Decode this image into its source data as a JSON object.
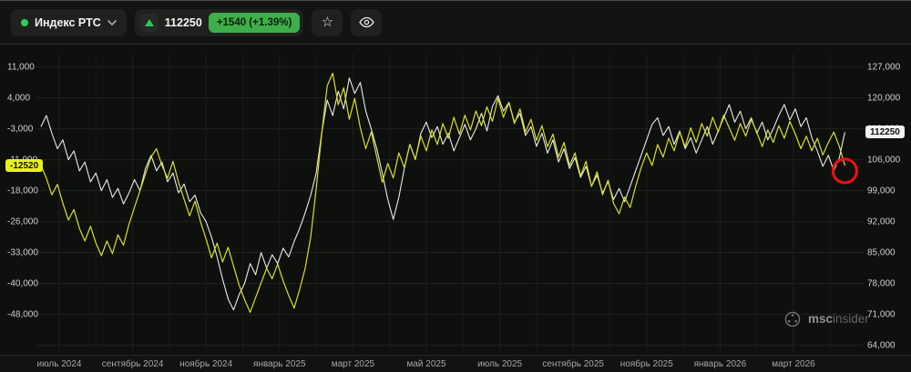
{
  "toolbar": {
    "instrument": {
      "label": "Индекс РТС",
      "status_color": "#2ecc5b"
    },
    "price": {
      "value": "112250",
      "change": "+1540 (+1.39%)",
      "direction": "up",
      "up_color": "#35c356",
      "change_bg": "#3fae4a"
    }
  },
  "watermark": {
    "brand_primary": "msc",
    "brand_secondary": "insider"
  },
  "chart_data": {
    "type": "line",
    "title": "Индекс РТС",
    "grid": true,
    "legend": false,
    "x_ticks": [
      {
        "m": 0,
        "label": "июль 2024"
      },
      {
        "m": 2,
        "label": "сентябрь 2024"
      },
      {
        "m": 4,
        "label": "ноябрь 2024"
      },
      {
        "m": 6,
        "label": "январь 2025"
      },
      {
        "m": 8,
        "label": "март 2025"
      },
      {
        "m": 10,
        "label": "май 2025"
      },
      {
        "m": 12,
        "label": "июль 2025"
      },
      {
        "m": 14,
        "label": "сентябрь 2025"
      },
      {
        "m": 16,
        "label": "ноябрь 2025"
      },
      {
        "m": 18,
        "label": "январь 2026"
      },
      {
        "m": 20,
        "label": "март 2026"
      }
    ],
    "axes": {
      "right": {
        "min": 62500,
        "max": 130000,
        "tick_values": [
          127000,
          120000,
          113000,
          106000,
          99000,
          92000,
          85000,
          78000,
          71000,
          64000
        ],
        "tick_labels": [
          "127,000",
          "120,000",
          "113,000",
          "106,000",
          "99,000",
          "92,000",
          "85,000",
          "78,000",
          "71,000",
          "64,000"
        ],
        "current": {
          "value": 112250,
          "label": "112250",
          "bg": "#f1f3f1",
          "fg": "#141414"
        }
      },
      "left": {
        "min": -56957,
        "max": 14161,
        "tick_labels": [
          "11,000",
          "4,000",
          "-3,000",
          "-11,000",
          "-18,000",
          "-26,000",
          "-33,000",
          "-40,000",
          "-48,000"
        ],
        "current": {
          "value": -12520,
          "label": "-12520",
          "bg": "#e8ef1f",
          "fg": "#141414"
        }
      }
    },
    "series": [
      {
        "name": "white-line",
        "color": "#e9ebe9",
        "axis": "right",
        "width": 1.1,
        "x_start": -0.5,
        "x_step": 0.15,
        "values": [
          113500,
          116000,
          112000,
          108500,
          110500,
          106000,
          108000,
          103500,
          105500,
          101000,
          103000,
          99000,
          101500,
          97500,
          99500,
          96000,
          98500,
          101500,
          99000,
          104000,
          107000,
          103500,
          105500,
          101000,
          103000,
          98500,
          100500,
          96500,
          98000,
          94000,
          92000,
          88500,
          84000,
          79000,
          74500,
          72000,
          75500,
          78000,
          82500,
          80000,
          85000,
          81500,
          84500,
          82500,
          86000,
          84000,
          87500,
          90500,
          94000,
          98000,
          103000,
          112000,
          119500,
          116000,
          121500,
          117500,
          124500,
          121000,
          123500,
          117000,
          113000,
          108500,
          103000,
          97000,
          92500,
          97500,
          104000,
          109500,
          106000,
          112000,
          114500,
          111000,
          113500,
          109500,
          112000,
          108000,
          111000,
          114000,
          110500,
          113000,
          116500,
          112500,
          118000,
          120500,
          117000,
          119000,
          114500,
          116500,
          111500,
          113500,
          109000,
          112000,
          107500,
          110500,
          105500,
          108500,
          104000,
          106500,
          102000,
          104500,
          100000,
          102500,
          98500,
          101000,
          97000,
          99500,
          96500,
          100000,
          103500,
          107000,
          110500,
          114000,
          115500,
          111500,
          113500,
          109500,
          112500,
          108500,
          111000,
          107500,
          110500,
          113500,
          109500,
          112500,
          115500,
          118500,
          114500,
          117000,
          113000,
          115500,
          112000,
          114500,
          110500,
          113000,
          116000,
          118500,
          115000,
          117500,
          113500,
          115500,
          111000,
          108000,
          104500,
          107000,
          103500,
          106500,
          112250
        ]
      },
      {
        "name": "yellow-line",
        "color": "#d9e021",
        "axis": "left",
        "width": 1.2,
        "x_start": -0.5,
        "x_step": 0.15,
        "values": [
          -12500,
          -15500,
          -19500,
          -17000,
          -21500,
          -25500,
          -23000,
          -27500,
          -30500,
          -27000,
          -31000,
          -34000,
          -30500,
          -33500,
          -29000,
          -31500,
          -26500,
          -22500,
          -18500,
          -14500,
          -10500,
          -8500,
          -12500,
          -15500,
          -11500,
          -16500,
          -20500,
          -24500,
          -21000,
          -26000,
          -30000,
          -34500,
          -31000,
          -35500,
          -32000,
          -36500,
          -41000,
          -44500,
          -47500,
          -44000,
          -40500,
          -37000,
          -39500,
          -36000,
          -40000,
          -43500,
          -46500,
          -42000,
          -37000,
          -29500,
          -18000,
          -5000,
          6500,
          9500,
          2000,
          6000,
          -1500,
          3500,
          -3500,
          -8500,
          -4500,
          -10500,
          -16500,
          -12000,
          -15500,
          -9500,
          -13000,
          -7500,
          -11000,
          -5500,
          -9000,
          -4000,
          -7500,
          -2500,
          -6000,
          -1000,
          -5000,
          -500,
          -4000,
          500,
          -3000,
          1500,
          -2000,
          3500,
          -1000,
          2500,
          -2500,
          1000,
          -4500,
          -1500,
          -6500,
          -3000,
          -8000,
          -5000,
          -10500,
          -7000,
          -12500,
          -9500,
          -15000,
          -11500,
          -17500,
          -14000,
          -19500,
          -16000,
          -21500,
          -24000,
          -20000,
          -22500,
          -17500,
          -13000,
          -9500,
          -12500,
          -7500,
          -10500,
          -6000,
          -9000,
          -4500,
          -8000,
          -3500,
          -7000,
          -2500,
          -5500,
          -1000,
          -4500,
          -500,
          -3500,
          -6500,
          -2500,
          -5500,
          -1500,
          -4500,
          -8000,
          -4000,
          -7000,
          -3000,
          -6000,
          -2000,
          -5000,
          -8500,
          -5500,
          -9000,
          -6000,
          -10000,
          -7000,
          -4500,
          -8000,
          -12520
        ]
      }
    ],
    "annotations": [
      {
        "type": "circle",
        "x": 21.4,
        "axis": "left",
        "value": -13800,
        "radius": 13,
        "color": "#e31212"
      }
    ]
  }
}
